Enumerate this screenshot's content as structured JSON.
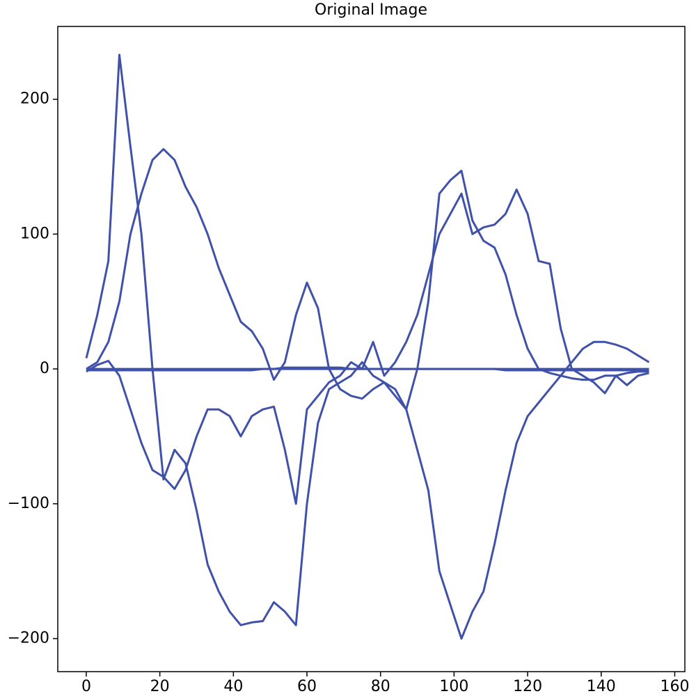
{
  "chart_data": {
    "type": "line",
    "title": "Original Image",
    "x": [
      0,
      3,
      6,
      9,
      12,
      15,
      18,
      21,
      24,
      27,
      30,
      33,
      36,
      39,
      42,
      45,
      48,
      51,
      54,
      57,
      60,
      63,
      66,
      69,
      72,
      75,
      78,
      81,
      84,
      87,
      90,
      93,
      96,
      99,
      102,
      105,
      108,
      111,
      114,
      117,
      120,
      123,
      126,
      129,
      132,
      135,
      138,
      141,
      144,
      147,
      150,
      153
    ],
    "series": [
      {
        "color": "#3f51a8",
        "values": [
          8,
          40,
          80,
          233,
          165,
          100,
          0,
          -82,
          -60,
          -70,
          -105,
          -145,
          -165,
          -180,
          -190,
          -188,
          -187,
          -173,
          -180,
          -190,
          -100,
          -40,
          -15,
          -10,
          -5,
          5,
          -5,
          -10,
          -15,
          -30,
          -60,
          -90,
          -150,
          -175,
          -200,
          -180,
          -165,
          -130,
          -90,
          -55,
          -35,
          -25,
          -15,
          -5,
          5,
          15,
          20,
          20,
          18,
          15,
          10,
          5
        ]
      },
      {
        "color": "#3f51a8",
        "values": [
          0,
          5,
          20,
          50,
          100,
          130,
          155,
          163,
          155,
          135,
          120,
          100,
          75,
          55,
          35,
          28,
          15,
          -8,
          5,
          40,
          64,
          45,
          0,
          -15,
          -20,
          -22,
          -15,
          -10,
          -20,
          -30,
          0,
          50,
          130,
          140,
          147,
          110,
          95,
          90,
          70,
          40,
          15,
          0,
          -3,
          -5,
          -7,
          -8,
          -8,
          -5,
          -5,
          -3,
          -2,
          -2
        ]
      },
      {
        "color": "#3f51a8",
        "values": [
          -2,
          3,
          6,
          -5,
          -30,
          -55,
          -75,
          -80,
          -89,
          -75,
          -50,
          -30,
          -30,
          -35,
          -50,
          -35,
          -30,
          -28,
          -60,
          -100,
          -30,
          -20,
          -10,
          -5,
          5,
          0,
          20,
          -5,
          5,
          20,
          40,
          70,
          100,
          115,
          130,
          100,
          105,
          107,
          115,
          133,
          115,
          80,
          78,
          30,
          0,
          -5,
          -10,
          -18,
          -5,
          -12,
          -5,
          -3
        ]
      },
      {
        "color": "#3f51a8",
        "values": [
          0,
          0,
          0,
          0,
          0,
          0,
          0,
          0,
          0,
          0,
          0,
          0,
          0,
          0,
          0,
          0,
          0,
          0,
          1,
          1,
          1,
          1,
          1,
          1,
          0,
          0,
          0,
          0,
          0,
          0,
          0,
          0,
          0,
          0,
          0,
          0,
          0,
          0,
          0,
          0,
          0,
          0,
          0,
          0,
          0,
          0,
          0,
          0,
          0,
          0,
          0,
          0
        ]
      },
      {
        "color": "#3f51a8",
        "values": [
          -1,
          -1,
          -1,
          -1,
          -1,
          -1,
          -1,
          -1,
          -1,
          -1,
          -1,
          -1,
          -1,
          -1,
          -1,
          -1,
          0,
          0,
          0,
          0,
          0,
          0,
          0,
          0,
          0,
          0,
          0,
          0,
          0,
          0,
          0,
          0,
          0,
          0,
          0,
          0,
          0,
          0,
          -1,
          -1,
          -1,
          -1,
          -1,
          -1,
          -1,
          -1,
          -1,
          -1,
          -1,
          -1,
          -1,
          -1
        ]
      }
    ],
    "xlim": [
      -7.75,
      162.75
    ],
    "ylim": [
      -224.5,
      254
    ],
    "xticks": [
      0,
      20,
      40,
      60,
      80,
      100,
      120,
      140,
      160
    ],
    "yticks": [
      {
        "value": -200,
        "label": "−200"
      },
      {
        "value": -100,
        "label": "−100"
      },
      0,
      100,
      200
    ]
  }
}
